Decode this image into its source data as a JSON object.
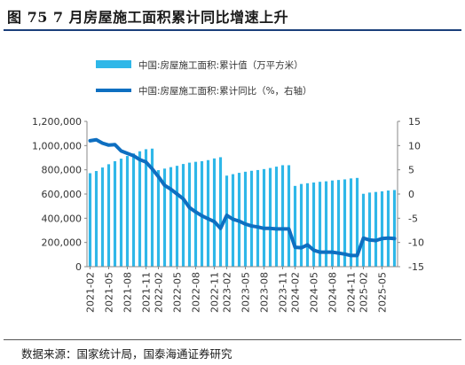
{
  "figure": {
    "title": "图 75 7 月房屋施工面积累计同比增速上升",
    "source": "数据来源：国家统计局，国泰海通证券研究"
  },
  "colors": {
    "bar": "#2fb7e8",
    "line": "#0e6fc1",
    "axis": "#888888",
    "title_rule": "#1a3f7a"
  },
  "chart_data": {
    "type": "bar+line",
    "title": "",
    "legend_position": "top-center",
    "grid": false,
    "x": [
      "2021-02",
      "2021-03",
      "2021-04",
      "2021-05",
      "2021-06",
      "2021-07",
      "2021-08",
      "2021-09",
      "2021-10",
      "2021-11",
      "2021-12",
      "2022-02",
      "2022-03",
      "2022-04",
      "2022-05",
      "2022-06",
      "2022-07",
      "2022-08",
      "2022-09",
      "2022-10",
      "2022-11",
      "2022-12",
      "2023-02",
      "2023-03",
      "2023-04",
      "2023-05",
      "2023-06",
      "2023-07",
      "2023-08",
      "2023-09",
      "2023-10",
      "2023-11",
      "2023-12",
      "2024-02",
      "2024-03",
      "2024-04",
      "2024-05",
      "2024-06",
      "2024-07",
      "2024-08",
      "2024-09",
      "2024-10",
      "2024-11",
      "2024-12",
      "2025-02",
      "2025-03",
      "2025-04",
      "2025-05",
      "2025-06",
      "2025-07"
    ],
    "x_tick_labels": [
      "2021-02",
      "2021-05",
      "2021-08",
      "2021-11",
      "2022-02",
      "2022-05",
      "2022-08",
      "2022-11",
      "2023-02",
      "2023-05",
      "2023-08",
      "2023-11",
      "2024-02",
      "2024-05",
      "2024-08",
      "2024-11",
      "2025-02",
      "2025-05"
    ],
    "y_left": {
      "ticks": [
        "0",
        "200,000",
        "400,000",
        "600,000",
        "800,000",
        "1,000,000",
        "1,200,000"
      ],
      "min": 0,
      "max": 1200000
    },
    "y_right": {
      "ticks": [
        "-15",
        "-10",
        "-5",
        "0",
        "5",
        "10",
        "15"
      ],
      "min": -15,
      "max": 15
    },
    "series": [
      {
        "name": "中国:房屋施工面积:累计值（万平方米）",
        "type": "bar",
        "axis": "left",
        "values": [
          772000,
          790000,
          819000,
          846000,
          871000,
          892000,
          914000,
          935000,
          953000,
          970000,
          975000,
          797000,
          810000,
          822000,
          833000,
          848000,
          859000,
          866000,
          871000,
          880000,
          894000,
          904000,
          752000,
          764000,
          775000,
          784000,
          792000,
          798000,
          806000,
          815000,
          826000,
          838000,
          838000,
          667000,
          683000,
          689000,
          695000,
          701000,
          705000,
          712000,
          716000,
          721000,
          729000,
          733000,
          602000,
          612000,
          617000,
          622000,
          629000,
          633000
        ]
      },
      {
        "name": "中国:房屋施工面积:累计同比（%，右轴）",
        "type": "line",
        "axis": "right",
        "values": [
          11.0,
          11.2,
          10.5,
          10.1,
          10.2,
          8.9,
          8.4,
          7.9,
          7.1,
          6.6,
          5.2,
          3.6,
          1.8,
          1.0,
          0.0,
          -1.0,
          -2.8,
          -3.7,
          -4.5,
          -5.1,
          -5.7,
          -7.1,
          -4.4,
          -5.2,
          -5.6,
          -6.2,
          -6.6,
          -6.8,
          -7.1,
          -7.1,
          -7.2,
          -7.2,
          -7.2,
          -11.0,
          -11.1,
          -10.5,
          -11.6,
          -12.0,
          -12.0,
          -12.0,
          -12.2,
          -12.4,
          -12.7,
          -12.7,
          -9.1,
          -9.5,
          -9.6,
          -9.2,
          -9.1,
          -9.2
        ]
      }
    ]
  }
}
